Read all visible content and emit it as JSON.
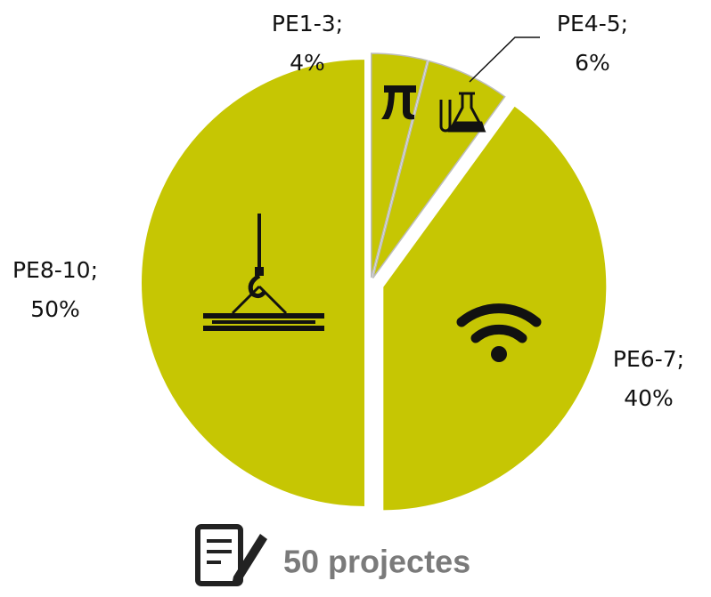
{
  "chart_data": {
    "type": "pie",
    "categories": [
      "PE1-3;",
      "PE4-5;",
      "PE6-7;",
      "PE8-10;"
    ],
    "values": [
      4,
      6,
      40,
      50
    ],
    "value_labels": [
      "4%",
      "6%",
      "40%",
      "50%"
    ],
    "color": "#c6c603",
    "footer": "50 projectes"
  }
}
